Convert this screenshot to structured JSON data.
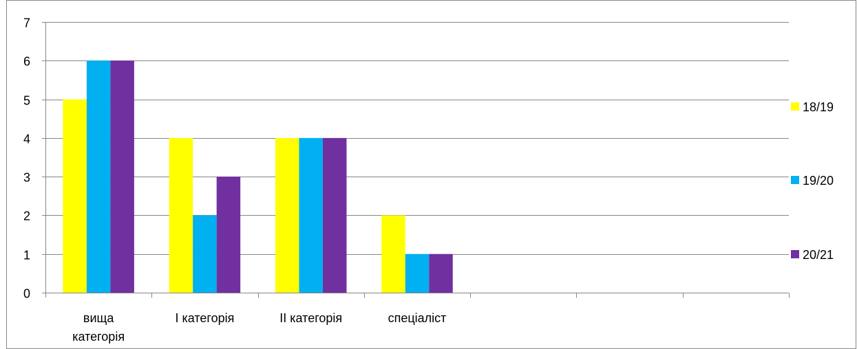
{
  "chart_data": {
    "type": "bar",
    "title": "",
    "xlabel": "",
    "ylabel": "",
    "ylim": [
      0,
      7
    ],
    "yticks": [
      0,
      1,
      2,
      3,
      4,
      5,
      6,
      7
    ],
    "grid": "horizontal",
    "legend_position": "right",
    "slot_count": 7,
    "categories": [
      [
        "вища",
        "категорія"
      ],
      [
        "І категорія"
      ],
      [
        "ІІ категорія"
      ],
      [
        "спеціаліст"
      ]
    ],
    "series": [
      {
        "name": "18/19",
        "color": "#ffff00",
        "values": [
          5,
          4,
          4,
          2
        ]
      },
      {
        "name": "19/20",
        "color": "#00b0f0",
        "values": [
          6,
          2,
          4,
          1
        ]
      },
      {
        "name": "20/21",
        "color": "#7030a0",
        "values": [
          6,
          3,
          4,
          1
        ]
      }
    ]
  }
}
